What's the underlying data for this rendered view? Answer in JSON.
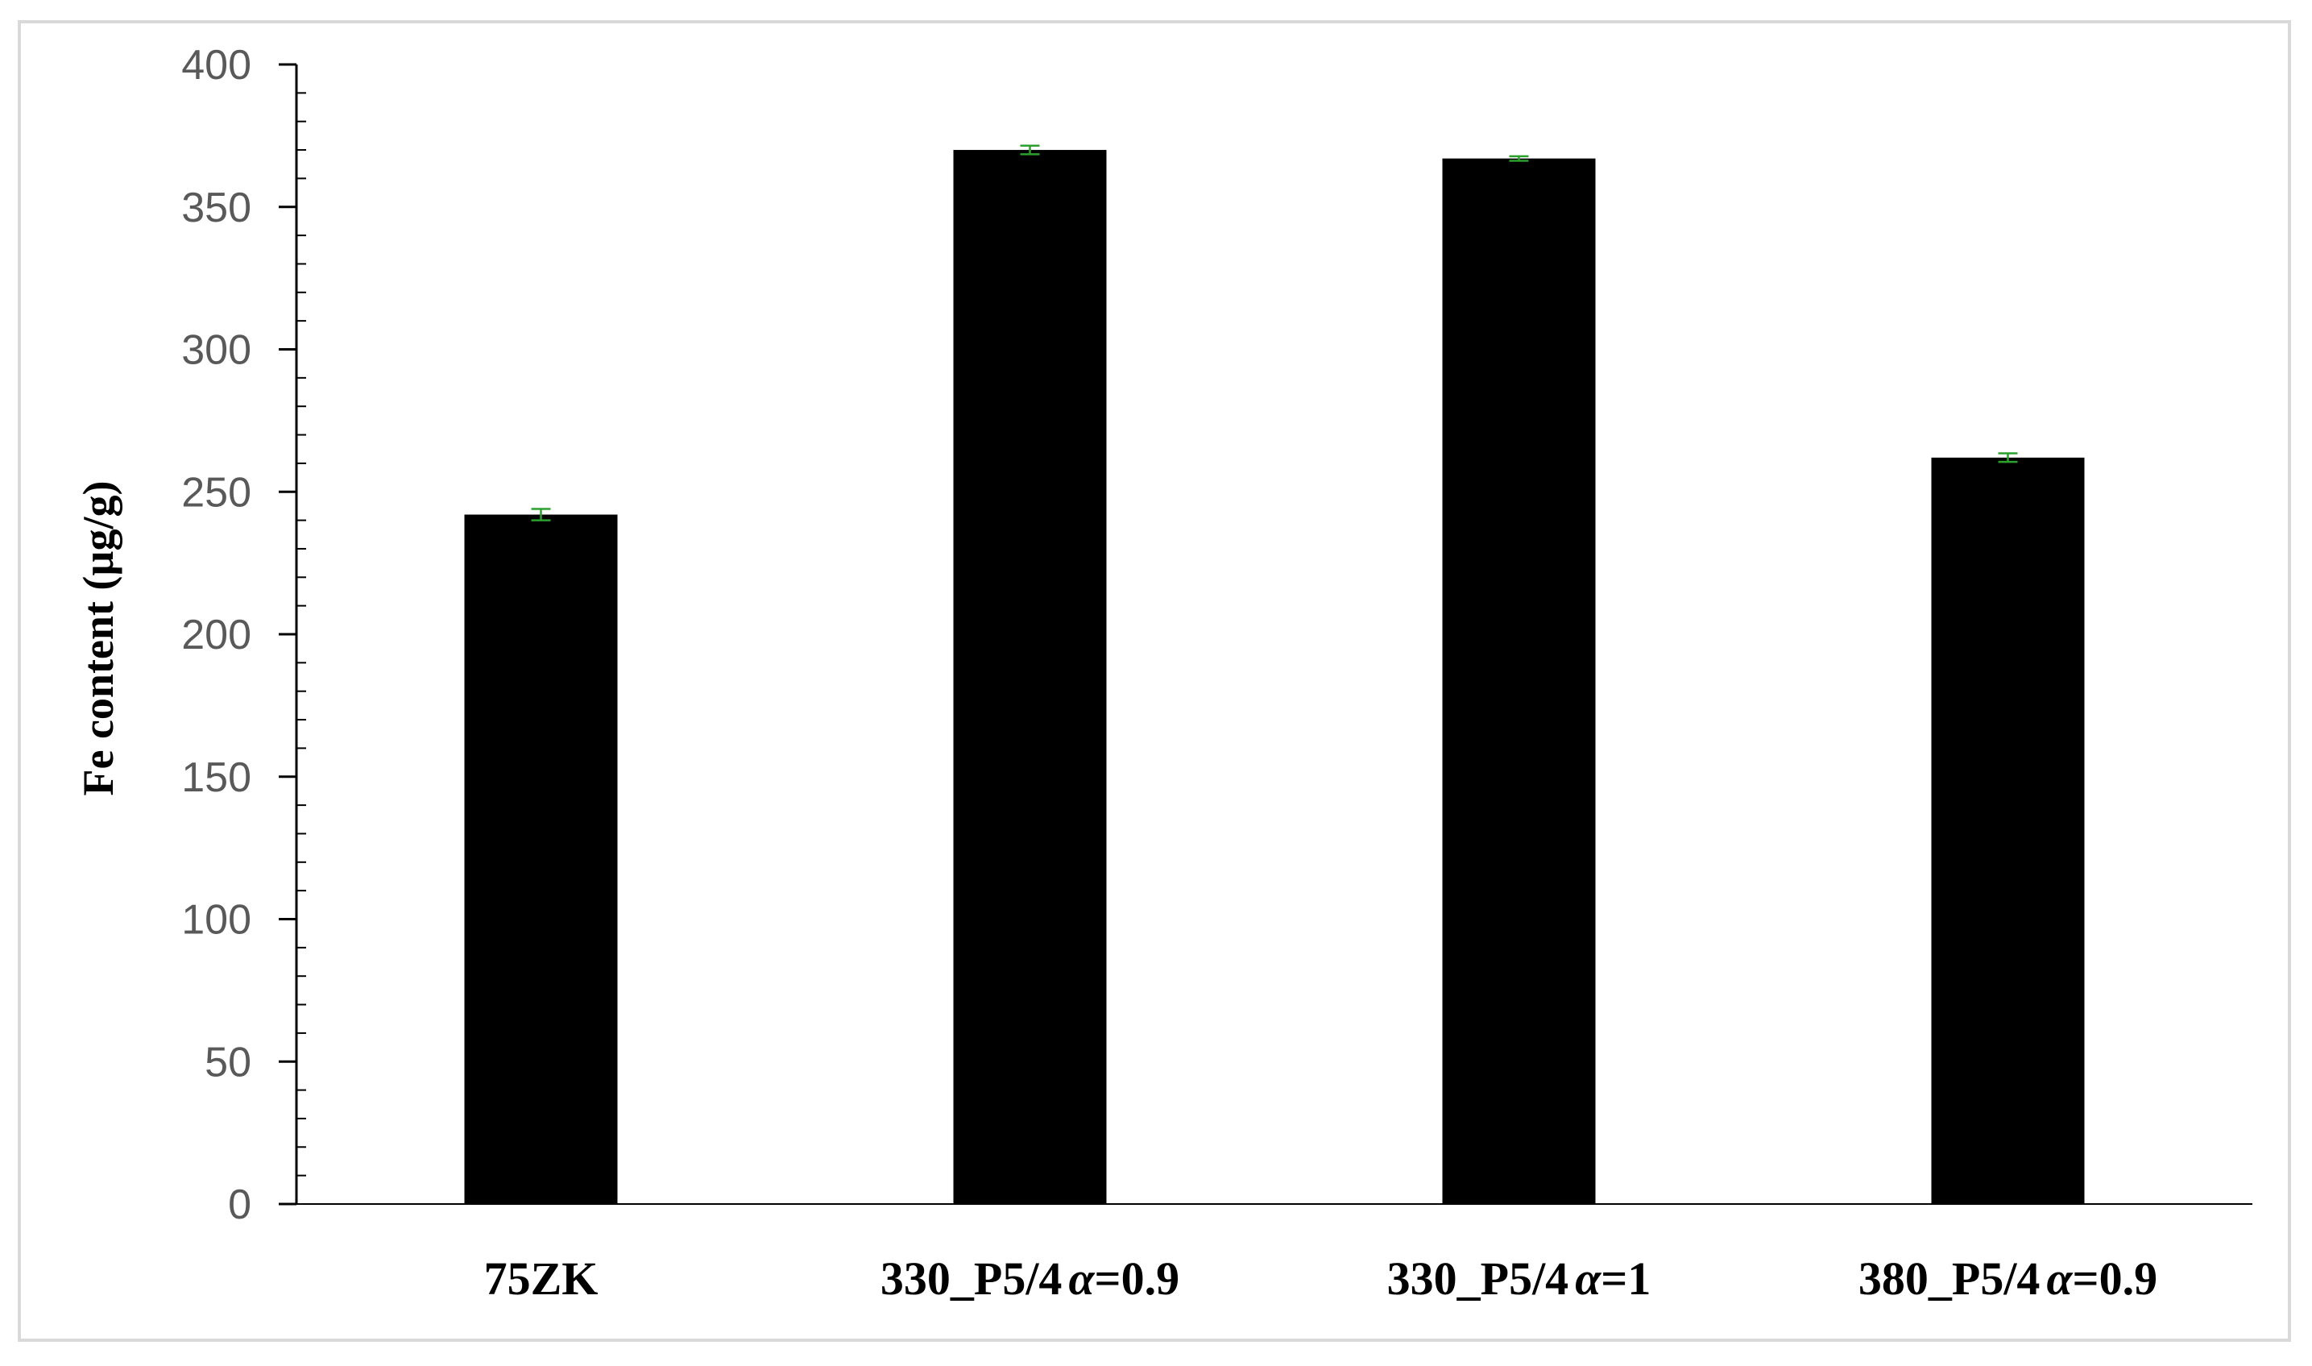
{
  "chart_data": {
    "type": "bar",
    "title": "",
    "xlabel": "",
    "ylabel": "Fe content (µg/g)",
    "categories": [
      "75ZK",
      "330_P5/4α=0.9",
      "330_P5/4α=1",
      "380_P5/4α=0.9"
    ],
    "category_labels": [
      {
        "main": "75ZK",
        "alpha": "",
        "suffix": ""
      },
      {
        "main": "330_P5/4",
        "alpha": "α",
        "suffix": "=0.9"
      },
      {
        "main": "330_P5/4",
        "alpha": "α",
        "suffix": "=1"
      },
      {
        "main": "380_P5/4",
        "alpha": "α",
        "suffix": "=0.9"
      }
    ],
    "values": [
      242,
      370,
      367,
      262
    ],
    "errors": [
      2,
      1.5,
      0.8,
      1.5
    ],
    "ylim": [
      0,
      400
    ],
    "yticks": [
      0,
      50,
      100,
      150,
      200,
      250,
      300,
      350,
      400
    ],
    "grid": false,
    "legend": "none",
    "colors": {
      "bar": "#000000",
      "error_bar": "#2ca02c",
      "axis": "#000000",
      "tick_label": "#595959",
      "frame": "#d9d9d9"
    }
  }
}
